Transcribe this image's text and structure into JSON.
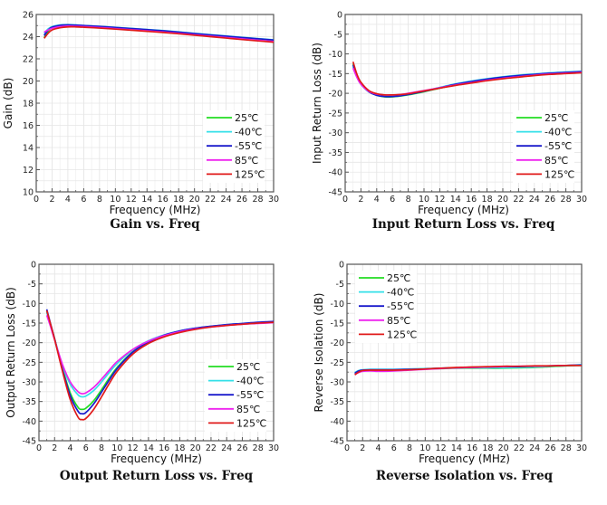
{
  "chart_data": [
    {
      "type": "line",
      "title": "Gain vs. Freq",
      "xlabel": "Frequency  (MHz)",
      "ylabel": "Gain (dB)",
      "xlim": [
        0,
        30
      ],
      "ylim": [
        10,
        26
      ],
      "xticks": [
        0,
        2,
        4,
        6,
        8,
        10,
        12,
        14,
        16,
        18,
        20,
        22,
        24,
        26,
        28,
        30
      ],
      "yticks": [
        10,
        12,
        14,
        16,
        18,
        20,
        22,
        24,
        26
      ],
      "grid": true,
      "legend_position": "bottom-right",
      "x": [
        1,
        1.5,
        2,
        3,
        4,
        5,
        6,
        8,
        10,
        12,
        14,
        16,
        18,
        20,
        22,
        24,
        26,
        28,
        30
      ],
      "series": [
        {
          "name": "25℃",
          "color": "#22dd22",
          "values": [
            23.9,
            24.5,
            24.8,
            25.0,
            25.05,
            25.02,
            24.98,
            24.9,
            24.8,
            24.7,
            24.6,
            24.5,
            24.38,
            24.25,
            24.12,
            24.0,
            23.88,
            23.77,
            23.65
          ]
        },
        {
          "name": "-40℃",
          "color": "#33e0e8",
          "values": [
            24.3,
            24.7,
            24.9,
            25.05,
            25.08,
            25.05,
            25.0,
            24.93,
            24.84,
            24.75,
            24.65,
            24.55,
            24.43,
            24.3,
            24.18,
            24.06,
            23.94,
            23.83,
            23.72
          ]
        },
        {
          "name": "-55℃",
          "color": "#1a1acc",
          "values": [
            24.1,
            24.6,
            24.85,
            25.02,
            25.06,
            25.04,
            25.0,
            24.92,
            24.83,
            24.73,
            24.63,
            24.53,
            24.41,
            24.28,
            24.16,
            24.04,
            23.92,
            23.81,
            23.7
          ]
        },
        {
          "name": "85℃",
          "color": "#ee22ee",
          "values": [
            24.4,
            24.6,
            24.75,
            24.9,
            24.95,
            24.93,
            24.9,
            24.82,
            24.72,
            24.62,
            24.52,
            24.42,
            24.3,
            24.17,
            24.04,
            23.92,
            23.8,
            23.68,
            23.56
          ]
        },
        {
          "name": "125℃",
          "color": "#e01a1a",
          "values": [
            23.85,
            24.3,
            24.6,
            24.8,
            24.88,
            24.88,
            24.85,
            24.77,
            24.68,
            24.58,
            24.48,
            24.38,
            24.26,
            24.13,
            24.0,
            23.87,
            23.74,
            23.62,
            23.5
          ]
        }
      ]
    },
    {
      "type": "line",
      "title": "Input Return Loss vs. Freq",
      "xlabel": "Frequency  (MHz)",
      "ylabel": "Input Return Loss (dB)",
      "xlim": [
        0,
        30
      ],
      "ylim": [
        -45,
        0
      ],
      "xticks": [
        0,
        2,
        4,
        6,
        8,
        10,
        12,
        14,
        16,
        18,
        20,
        22,
        24,
        26,
        28,
        30
      ],
      "yticks": [
        -45,
        -40,
        -35,
        -30,
        -25,
        -20,
        -15,
        -10,
        -5,
        0
      ],
      "grid": true,
      "legend_position": "bottom-right",
      "x": [
        1,
        1.5,
        2,
        3,
        4,
        5,
        6,
        7,
        8,
        10,
        12,
        14,
        16,
        18,
        20,
        22,
        24,
        26,
        28,
        30
      ],
      "series": [
        {
          "name": "25℃",
          "color": "#22dd22",
          "values": [
            -12.5,
            -15.5,
            -17.5,
            -19.6,
            -20.5,
            -20.9,
            -20.9,
            -20.7,
            -20.4,
            -19.6,
            -18.7,
            -17.9,
            -17.1,
            -16.5,
            -16.0,
            -15.6,
            -15.2,
            -14.9,
            -14.7,
            -14.5
          ]
        },
        {
          "name": "-40℃",
          "color": "#33e0e8",
          "values": [
            -13.2,
            -15.9,
            -17.7,
            -19.6,
            -20.4,
            -20.7,
            -20.7,
            -20.5,
            -20.2,
            -19.4,
            -18.5,
            -17.6,
            -16.9,
            -16.3,
            -15.8,
            -15.4,
            -15.1,
            -14.8,
            -14.6,
            -14.4
          ]
        },
        {
          "name": "-55℃",
          "color": "#1a1acc",
          "values": [
            -12.8,
            -15.7,
            -17.6,
            -19.6,
            -20.5,
            -20.8,
            -20.8,
            -20.6,
            -20.3,
            -19.5,
            -18.6,
            -17.7,
            -17.0,
            -16.4,
            -15.9,
            -15.5,
            -15.2,
            -14.9,
            -14.7,
            -14.5
          ]
        },
        {
          "name": "85℃",
          "color": "#ee22ee",
          "values": [
            -13.6,
            -16.0,
            -17.7,
            -19.5,
            -20.2,
            -20.4,
            -20.4,
            -20.3,
            -20.0,
            -19.3,
            -18.6,
            -17.9,
            -17.3,
            -16.7,
            -16.2,
            -15.8,
            -15.4,
            -15.1,
            -14.9,
            -14.7
          ]
        },
        {
          "name": "125℃",
          "color": "#e01a1a",
          "values": [
            -12.0,
            -15.2,
            -17.2,
            -19.3,
            -20.1,
            -20.4,
            -20.4,
            -20.3,
            -20.1,
            -19.4,
            -18.7,
            -18.0,
            -17.4,
            -16.8,
            -16.3,
            -15.9,
            -15.5,
            -15.2,
            -15.0,
            -14.8
          ]
        }
      ]
    },
    {
      "type": "line",
      "title": "Output Return Loss vs. Freq",
      "xlabel": "Frequency  (MHz)",
      "ylabel": "Output Return Loss (dB)",
      "xlim": [
        0,
        30
      ],
      "ylim": [
        -45,
        0
      ],
      "xticks": [
        0,
        2,
        4,
        6,
        8,
        10,
        12,
        14,
        16,
        18,
        20,
        22,
        24,
        26,
        28,
        30
      ],
      "yticks": [
        -45,
        -40,
        -35,
        -30,
        -25,
        -20,
        -15,
        -10,
        -5,
        0
      ],
      "grid": true,
      "legend_position": "bottom-right",
      "x": [
        1,
        1.5,
        2,
        3,
        4,
        5,
        5.5,
        6,
        7,
        8,
        9,
        10,
        12,
        14,
        16,
        18,
        20,
        22,
        24,
        26,
        28,
        30
      ],
      "series": [
        {
          "name": "25℃",
          "color": "#22dd22",
          "values": [
            -12.0,
            -15.5,
            -19.0,
            -26.5,
            -32.8,
            -36.5,
            -37.0,
            -36.7,
            -34.8,
            -32.0,
            -29.0,
            -26.3,
            -22.3,
            -19.8,
            -18.2,
            -17.1,
            -16.4,
            -15.9,
            -15.5,
            -15.2,
            -15.0,
            -14.8
          ]
        },
        {
          "name": "-40℃",
          "color": "#33e0e8",
          "values": [
            -12.3,
            -15.6,
            -19.0,
            -25.8,
            -30.6,
            -33.3,
            -33.8,
            -33.6,
            -32.2,
            -30.0,
            -27.6,
            -25.3,
            -21.8,
            -19.5,
            -18.0,
            -17.0,
            -16.3,
            -15.8,
            -15.4,
            -15.1,
            -14.9,
            -14.7
          ]
        },
        {
          "name": "-55℃",
          "color": "#1a1acc",
          "values": [
            -11.5,
            -15.3,
            -19.0,
            -26.8,
            -33.5,
            -37.5,
            -38.1,
            -37.8,
            -35.6,
            -32.6,
            -29.5,
            -26.6,
            -22.4,
            -19.8,
            -18.1,
            -17.0,
            -16.3,
            -15.8,
            -15.4,
            -15.1,
            -14.8,
            -14.6
          ]
        },
        {
          "name": "85℃",
          "color": "#ee22ee",
          "values": [
            -13.0,
            -16.0,
            -19.3,
            -25.5,
            -30.0,
            -32.5,
            -33.0,
            -32.8,
            -31.4,
            -29.3,
            -27.0,
            -24.8,
            -21.7,
            -19.6,
            -18.2,
            -17.2,
            -16.5,
            -16.0,
            -15.6,
            -15.3,
            -15.1,
            -14.9
          ]
        },
        {
          "name": "125℃",
          "color": "#e01a1a",
          "values": [
            -11.8,
            -15.4,
            -19.1,
            -27.2,
            -34.5,
            -39.0,
            -39.6,
            -39.3,
            -37.0,
            -33.8,
            -30.4,
            -27.3,
            -22.9,
            -20.2,
            -18.5,
            -17.4,
            -16.6,
            -16.0,
            -15.6,
            -15.3,
            -15.0,
            -14.8
          ]
        }
      ]
    },
    {
      "type": "line",
      "title": "Reverse Isolation vs. Freq",
      "xlabel": "Frequency  (MHz)",
      "ylabel": "Reverse Isolation (dB)",
      "xlim": [
        0,
        30
      ],
      "ylim": [
        -45,
        0
      ],
      "xticks": [
        0,
        2,
        4,
        6,
        8,
        10,
        12,
        14,
        16,
        18,
        20,
        22,
        24,
        26,
        28,
        30
      ],
      "yticks": [
        -45,
        -40,
        -35,
        -30,
        -25,
        -20,
        -15,
        -10,
        -5,
        0
      ],
      "grid": true,
      "legend_position": "top-left",
      "x": [
        1,
        1.5,
        2,
        3,
        4,
        6,
        8,
        10,
        12,
        14,
        16,
        18,
        20,
        22,
        24,
        26,
        28,
        30
      ],
      "series": [
        {
          "name": "25℃",
          "color": "#22dd22",
          "values": [
            -27.9,
            -27.3,
            -27.0,
            -26.9,
            -26.9,
            -26.9,
            -26.8,
            -26.7,
            -26.6,
            -26.5,
            -26.5,
            -26.5,
            -26.5,
            -26.4,
            -26.3,
            -26.1,
            -25.9,
            -25.8
          ]
        },
        {
          "name": "-40℃",
          "color": "#33e0e8",
          "values": [
            -27.6,
            -27.1,
            -26.9,
            -26.8,
            -26.8,
            -26.8,
            -26.7,
            -26.6,
            -26.5,
            -26.4,
            -26.4,
            -26.4,
            -26.4,
            -26.3,
            -26.2,
            -26.0,
            -25.8,
            -25.6
          ]
        },
        {
          "name": "-55℃",
          "color": "#1a1acc",
          "values": [
            -27.8,
            -27.2,
            -27.0,
            -26.9,
            -26.9,
            -26.9,
            -26.8,
            -26.7,
            -26.5,
            -26.4,
            -26.3,
            -26.2,
            -26.1,
            -26.1,
            -26.0,
            -25.9,
            -25.8,
            -25.7
          ]
        },
        {
          "name": "85℃",
          "color": "#ee22ee",
          "values": [
            -28.1,
            -27.6,
            -27.3,
            -27.2,
            -27.3,
            -27.2,
            -27.0,
            -26.8,
            -26.6,
            -26.4,
            -26.3,
            -26.2,
            -26.1,
            -26.0,
            -26.0,
            -25.9,
            -25.8,
            -25.8
          ]
        },
        {
          "name": "125℃",
          "color": "#e01a1a",
          "values": [
            -28.2,
            -27.5,
            -27.1,
            -27.0,
            -27.0,
            -27.0,
            -26.9,
            -26.7,
            -26.5,
            -26.3,
            -26.2,
            -26.1,
            -26.0,
            -26.0,
            -25.9,
            -25.9,
            -25.8,
            -25.8
          ]
        }
      ]
    }
  ]
}
